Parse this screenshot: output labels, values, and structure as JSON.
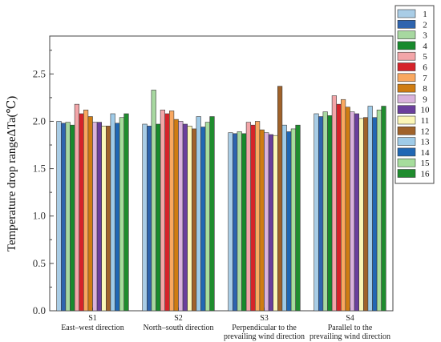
{
  "chart_data": {
    "type": "bar",
    "title": "",
    "xlabel": "",
    "ylabel": "Temperature drop range∆Ta(℃)",
    "ylim": [
      0,
      2.9
    ],
    "yticks": [
      "0.0",
      "0.5",
      "1.0",
      "1.5",
      "2.0",
      "2.5"
    ],
    "grid": false,
    "legend_position": "right",
    "categories": [
      {
        "code": "S1",
        "desc": [
          "East–west  direction"
        ]
      },
      {
        "code": "S2",
        "desc": [
          "North–south direction"
        ]
      },
      {
        "code": "S3",
        "desc": [
          "Perpendicular to the",
          "prevailing wind direction"
        ]
      },
      {
        "code": "S4",
        "desc": [
          "Parallel to the",
          "prevailing wind direction"
        ]
      }
    ],
    "series": [
      {
        "name": "1",
        "color": "#a9cde6",
        "values": [
          2.0,
          1.97,
          1.88,
          2.08
        ]
      },
      {
        "name": "2",
        "color": "#2e64ae",
        "values": [
          1.98,
          1.95,
          1.87,
          2.05
        ]
      },
      {
        "name": "3",
        "color": "#a7d8a0",
        "values": [
          1.99,
          2.33,
          1.89,
          2.1
        ]
      },
      {
        "name": "4",
        "color": "#178a2c",
        "values": [
          1.96,
          1.97,
          1.87,
          2.06
        ]
      },
      {
        "name": "5",
        "color": "#f3a5a8",
        "values": [
          2.18,
          2.12,
          1.99,
          2.27
        ]
      },
      {
        "name": "6",
        "color": "#d5232a",
        "values": [
          2.08,
          2.08,
          1.96,
          2.18
        ]
      },
      {
        "name": "7",
        "color": "#f9a860",
        "values": [
          2.12,
          2.11,
          2.0,
          2.23
        ]
      },
      {
        "name": "8",
        "color": "#cf7c12",
        "values": [
          2.05,
          2.02,
          1.91,
          2.15
        ]
      },
      {
        "name": "9",
        "color": "#d9b2dc",
        "values": [
          1.99,
          2.0,
          1.88,
          2.1
        ]
      },
      {
        "name": "10",
        "color": "#6a3f9c",
        "values": [
          1.99,
          1.97,
          1.86,
          2.08
        ]
      },
      {
        "name": "11",
        "color": "#fbf6b6",
        "values": [
          1.95,
          1.95,
          1.85,
          2.03
        ]
      },
      {
        "name": "12",
        "color": "#a0622a",
        "values": [
          1.95,
          1.92,
          2.37,
          2.04
        ]
      },
      {
        "name": "13",
        "color": "#9fcbe8",
        "values": [
          2.08,
          2.05,
          1.96,
          2.16
        ]
      },
      {
        "name": "14",
        "color": "#2067b4",
        "values": [
          1.98,
          1.94,
          1.89,
          2.04
        ]
      },
      {
        "name": "15",
        "color": "#a6dd9c",
        "values": [
          2.04,
          1.99,
          1.92,
          2.12
        ]
      },
      {
        "name": "16",
        "color": "#1f8c2e",
        "values": [
          2.08,
          2.05,
          1.96,
          2.16
        ]
      }
    ]
  }
}
